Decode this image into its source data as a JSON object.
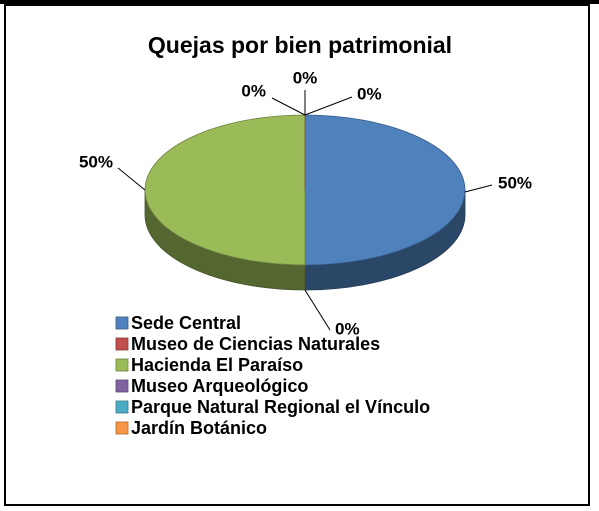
{
  "chart_data": {
    "type": "pie",
    "title": "Quejas por bien patrimonial",
    "categories": [
      "Sede Central",
      "Museo de Ciencias Naturales",
      "Hacienda El Paraíso",
      "Museo Arqueológico",
      "Parque Natural Regional el Vínculo",
      "Jardín Botánico"
    ],
    "values": [
      50,
      0,
      50,
      0,
      0,
      0
    ],
    "value_labels": [
      "50%",
      "0%",
      "50%",
      "0%",
      "0%",
      "0%"
    ],
    "colors": [
      "#4f81bd",
      "#c0504d",
      "#9bbb59",
      "#8064a2",
      "#4bacc6",
      "#f79646"
    ],
    "legend": "bottom"
  }
}
